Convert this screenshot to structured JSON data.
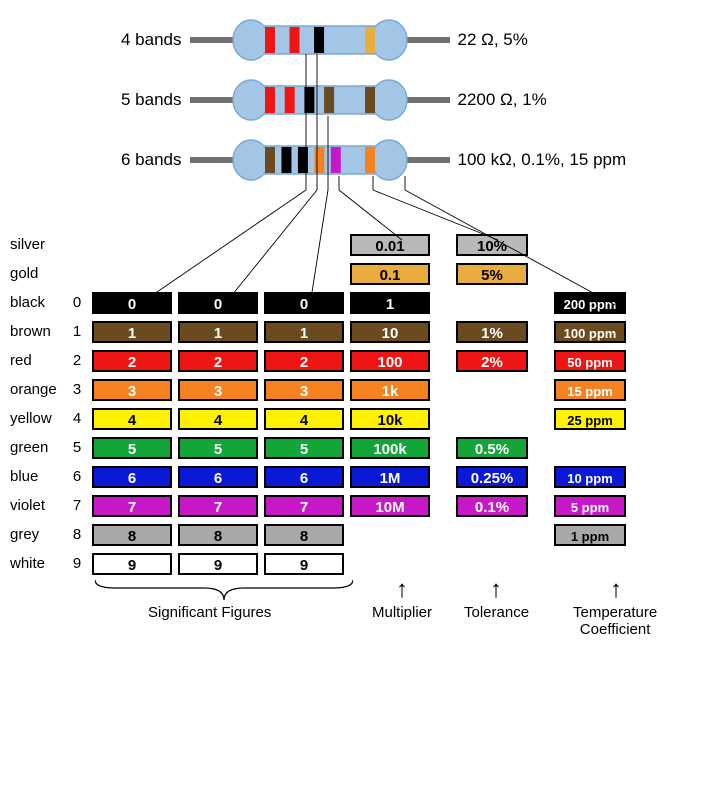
{
  "colors": {
    "band_silver": "#b8b8b8",
    "band_gold": "#e8ad3e",
    "band_black": "#000000",
    "band_brown": "#6b4a1f",
    "band_red": "#ef1515",
    "band_orange": "#f58220",
    "band_yellow": "#fff200",
    "band_green": "#13a538",
    "band_blue": "#0b19d6",
    "band_violet": "#c618c6",
    "band_grey": "#a8a8a8",
    "band_white": "#ffffff",
    "text_white": "#ffffff",
    "text_black": "#000000",
    "body_light": "#a3c6e6",
    "body_dark": "#7aa9d4",
    "lead_grey": "#6f6f6f"
  },
  "resistors": [
    {
      "label_left": "4 bands",
      "label_right": "22 Ω, 5%",
      "bands": [
        "red",
        "red",
        "black",
        "",
        "gold"
      ]
    },
    {
      "label_left": "5 bands",
      "label_right": "2200 Ω, 1%",
      "bands": [
        "red",
        "red",
        "black",
        "brown",
        "",
        "brown"
      ]
    },
    {
      "label_left": "6 bands",
      "label_right": "100 kΩ, 0.1%, 15 ppm",
      "bands": [
        "brown",
        "black",
        "black",
        "orange",
        "violet",
        "",
        "orange"
      ]
    }
  ],
  "rows": [
    {
      "name": "silver",
      "digit": "",
      "bg": "band_silver",
      "fg": "text_black",
      "sig": null,
      "mult": "0.01",
      "tol": "10%",
      "tcr": null
    },
    {
      "name": "gold",
      "digit": "",
      "bg": "band_gold",
      "fg": "text_black",
      "sig": null,
      "mult": "0.1",
      "tol": "5%",
      "tcr": null
    },
    {
      "name": "black",
      "digit": "0",
      "bg": "band_black",
      "fg": "text_white",
      "sig": "0",
      "mult": "1",
      "tol": null,
      "tcr": "200 ppm"
    },
    {
      "name": "brown",
      "digit": "1",
      "bg": "band_brown",
      "fg": "text_white",
      "sig": "1",
      "mult": "10",
      "tol": "1%",
      "tcr": "100 ppm"
    },
    {
      "name": "red",
      "digit": "2",
      "bg": "band_red",
      "fg": "text_white",
      "sig": "2",
      "mult": "100",
      "tol": "2%",
      "tcr": "50 ppm"
    },
    {
      "name": "orange",
      "digit": "3",
      "bg": "band_orange",
      "fg": "text_white",
      "sig": "3",
      "mult": "1k",
      "tol": null,
      "tcr": "15 ppm"
    },
    {
      "name": "yellow",
      "digit": "4",
      "bg": "band_yellow",
      "fg": "text_black",
      "sig": "4",
      "mult": "10k",
      "tol": null,
      "tcr": "25 ppm"
    },
    {
      "name": "green",
      "digit": "5",
      "bg": "band_green",
      "fg": "text_white",
      "sig": "5",
      "mult": "100k",
      "tol": "0.5%",
      "tcr": null
    },
    {
      "name": "blue",
      "digit": "6",
      "bg": "band_blue",
      "fg": "text_white",
      "sig": "6",
      "mult": "1M",
      "tol": "0.25%",
      "tcr": "10 ppm"
    },
    {
      "name": "violet",
      "digit": "7",
      "bg": "band_violet",
      "fg": "text_white",
      "sig": "7",
      "mult": "10M",
      "tol": "0.1%",
      "tcr": "5 ppm"
    },
    {
      "name": "grey",
      "digit": "8",
      "bg": "band_grey",
      "fg": "text_black",
      "sig": "8",
      "mult": null,
      "tol": null,
      "tcr": "1 ppm"
    },
    {
      "name": "white",
      "digit": "9",
      "bg": "band_white",
      "fg": "text_black",
      "sig": "9",
      "mult": null,
      "tol": null,
      "tcr": null
    }
  ],
  "bottom_labels": {
    "sig_figures": "Significant Figures",
    "multiplier": "Multiplier",
    "tolerance": "Tolerance",
    "tempco": "Temperature\nCoefficient"
  }
}
